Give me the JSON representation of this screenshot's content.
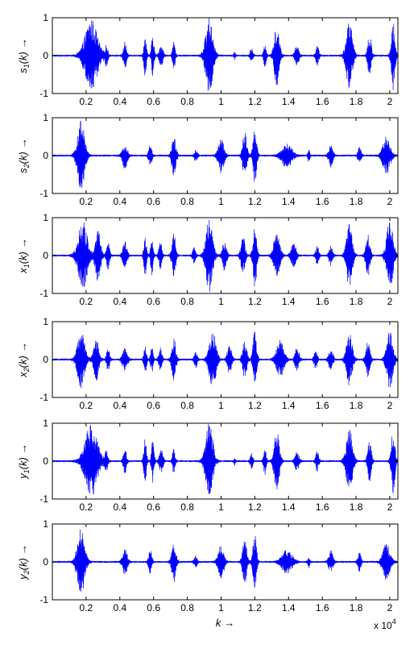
{
  "chart_data": [
    {
      "type": "line",
      "ylabel": "s1(k) →",
      "ylabel_main": "s",
      "ylabel_sub": "1",
      "ylabel_arg": "(k)",
      "ylabel_arrow": "→",
      "xlim": [
        0,
        20480
      ],
      "ylim": [
        -1,
        1
      ],
      "yticks": [
        -1,
        0,
        1
      ],
      "ytick_labels": [
        "-1",
        "0",
        "1"
      ],
      "xticks": [
        2000,
        4000,
        6000,
        8000,
        10000,
        12000,
        14000,
        16000,
        18000,
        20000
      ],
      "xtick_labels": [
        "0.2",
        "0.4",
        "0.6",
        "0.8",
        "1",
        "1.2",
        "1.4",
        "1.6",
        "1.8",
        "2"
      ],
      "grid": false,
      "color": "#0000ff",
      "envelope": [
        {
          "center": 2300,
          "width": 1200,
          "amp": 0.95
        },
        {
          "center": 3200,
          "width": 300,
          "amp": 0.25
        },
        {
          "center": 4300,
          "width": 300,
          "amp": 0.35
        },
        {
          "center": 5500,
          "width": 250,
          "amp": 0.55
        },
        {
          "center": 5950,
          "width": 250,
          "amp": 0.55
        },
        {
          "center": 6450,
          "width": 350,
          "amp": 0.3
        },
        {
          "center": 7200,
          "width": 250,
          "amp": 0.35
        },
        {
          "center": 9300,
          "width": 700,
          "amp": 1.0
        },
        {
          "center": 10800,
          "width": 150,
          "amp": 0.1
        },
        {
          "center": 11800,
          "width": 250,
          "amp": 0.2
        },
        {
          "center": 12600,
          "width": 250,
          "amp": 0.35
        },
        {
          "center": 13300,
          "width": 500,
          "amp": 0.8
        },
        {
          "center": 14500,
          "width": 400,
          "amp": 0.25
        },
        {
          "center": 15700,
          "width": 300,
          "amp": 0.25
        },
        {
          "center": 17600,
          "width": 600,
          "amp": 0.9
        },
        {
          "center": 18800,
          "width": 350,
          "amp": 0.55
        },
        {
          "center": 20200,
          "width": 350,
          "amp": 0.9
        }
      ]
    },
    {
      "type": "line",
      "ylabel": "s2(k) →",
      "ylabel_main": "s",
      "ylabel_sub": "2",
      "ylabel_arg": "(k)",
      "ylabel_arrow": "→",
      "xlim": [
        0,
        20480
      ],
      "ylim": [
        -1,
        1
      ],
      "yticks": [
        -1,
        0,
        1
      ],
      "ytick_labels": [
        "-1",
        "0",
        "1"
      ],
      "xticks": [
        2000,
        4000,
        6000,
        8000,
        10000,
        12000,
        14000,
        16000,
        18000,
        20000
      ],
      "xtick_labels": [
        "0.2",
        "0.4",
        "0.6",
        "0.8",
        "1",
        "1.2",
        "1.4",
        "1.6",
        "1.8",
        "2"
      ],
      "grid": false,
      "color": "#0000ff",
      "envelope": [
        {
          "center": 1700,
          "width": 700,
          "amp": 0.9
        },
        {
          "center": 4300,
          "width": 450,
          "amp": 0.35
        },
        {
          "center": 5800,
          "width": 300,
          "amp": 0.3
        },
        {
          "center": 7200,
          "width": 400,
          "amp": 0.55
        },
        {
          "center": 8500,
          "width": 300,
          "amp": 0.15
        },
        {
          "center": 10000,
          "width": 550,
          "amp": 0.45
        },
        {
          "center": 11400,
          "width": 400,
          "amp": 0.6
        },
        {
          "center": 12000,
          "width": 350,
          "amp": 0.75
        },
        {
          "center": 13900,
          "width": 1000,
          "amp": 0.3
        },
        {
          "center": 15200,
          "width": 200,
          "amp": 0.15
        },
        {
          "center": 16500,
          "width": 400,
          "amp": 0.3
        },
        {
          "center": 18200,
          "width": 300,
          "amp": 0.25
        },
        {
          "center": 19800,
          "width": 700,
          "amp": 0.5
        }
      ]
    },
    {
      "type": "line",
      "ylabel": "x1(k) →",
      "ylabel_main": "x",
      "ylabel_sub": "1",
      "ylabel_arg": "(k)",
      "ylabel_arrow": "→",
      "xlim": [
        0,
        20480
      ],
      "ylim": [
        -1,
        1
      ],
      "yticks": [
        -1,
        0,
        1
      ],
      "ytick_labels": [
        "-1",
        "0",
        "1"
      ],
      "xticks": [
        2000,
        4000,
        6000,
        8000,
        10000,
        12000,
        14000,
        16000,
        18000,
        20000
      ],
      "xtick_labels": [
        "0.2",
        "0.4",
        "0.6",
        "0.8",
        "1",
        "1.2",
        "1.4",
        "1.6",
        "1.8",
        "2"
      ],
      "grid": false,
      "color": "#0000ff",
      "envelope": [
        {
          "center": 1800,
          "width": 900,
          "amp": 0.9
        },
        {
          "center": 2700,
          "width": 500,
          "amp": 0.7
        },
        {
          "center": 3300,
          "width": 300,
          "amp": 0.35
        },
        {
          "center": 4300,
          "width": 400,
          "amp": 0.35
        },
        {
          "center": 5500,
          "width": 250,
          "amp": 0.55
        },
        {
          "center": 5900,
          "width": 250,
          "amp": 0.5
        },
        {
          "center": 6400,
          "width": 300,
          "amp": 0.35
        },
        {
          "center": 7200,
          "width": 350,
          "amp": 0.6
        },
        {
          "center": 8400,
          "width": 300,
          "amp": 0.2
        },
        {
          "center": 9300,
          "width": 650,
          "amp": 0.95
        },
        {
          "center": 10200,
          "width": 400,
          "amp": 0.4
        },
        {
          "center": 11300,
          "width": 400,
          "amp": 0.5
        },
        {
          "center": 12000,
          "width": 350,
          "amp": 0.85
        },
        {
          "center": 13300,
          "width": 600,
          "amp": 0.6
        },
        {
          "center": 14300,
          "width": 500,
          "amp": 0.3
        },
        {
          "center": 15700,
          "width": 300,
          "amp": 0.25
        },
        {
          "center": 16500,
          "width": 350,
          "amp": 0.25
        },
        {
          "center": 17600,
          "width": 550,
          "amp": 0.85
        },
        {
          "center": 18700,
          "width": 400,
          "amp": 0.55
        },
        {
          "center": 20000,
          "width": 600,
          "amp": 0.95
        }
      ]
    },
    {
      "type": "line",
      "ylabel": "x2(k) →",
      "ylabel_main": "x",
      "ylabel_sub": "2",
      "ylabel_arg": "(k)",
      "ylabel_arrow": "→",
      "xlim": [
        0,
        20480
      ],
      "ylim": [
        -1,
        1
      ],
      "yticks": [
        -1,
        0,
        1
      ],
      "ytick_labels": [
        "-1",
        "0",
        "1"
      ],
      "xticks": [
        2000,
        4000,
        6000,
        8000,
        10000,
        12000,
        14000,
        16000,
        18000,
        20000
      ],
      "xtick_labels": [
        "0.2",
        "0.4",
        "0.6",
        "0.8",
        "1",
        "1.2",
        "1.4",
        "1.6",
        "1.8",
        "2"
      ],
      "grid": false,
      "color": "#0000ff",
      "envelope": [
        {
          "center": 1700,
          "width": 700,
          "amp": 0.75
        },
        {
          "center": 2600,
          "width": 500,
          "amp": 0.55
        },
        {
          "center": 3300,
          "width": 300,
          "amp": 0.3
        },
        {
          "center": 4300,
          "width": 450,
          "amp": 0.3
        },
        {
          "center": 5500,
          "width": 250,
          "amp": 0.4
        },
        {
          "center": 5900,
          "width": 250,
          "amp": 0.35
        },
        {
          "center": 6400,
          "width": 300,
          "amp": 0.3
        },
        {
          "center": 7200,
          "width": 400,
          "amp": 0.55
        },
        {
          "center": 8500,
          "width": 300,
          "amp": 0.2
        },
        {
          "center": 9500,
          "width": 650,
          "amp": 0.75
        },
        {
          "center": 10500,
          "width": 400,
          "amp": 0.4
        },
        {
          "center": 11400,
          "width": 400,
          "amp": 0.5
        },
        {
          "center": 12000,
          "width": 350,
          "amp": 0.8
        },
        {
          "center": 13500,
          "width": 700,
          "amp": 0.5
        },
        {
          "center": 14500,
          "width": 400,
          "amp": 0.3
        },
        {
          "center": 15600,
          "width": 300,
          "amp": 0.25
        },
        {
          "center": 16500,
          "width": 400,
          "amp": 0.3
        },
        {
          "center": 17600,
          "width": 550,
          "amp": 0.7
        },
        {
          "center": 18700,
          "width": 400,
          "amp": 0.45
        },
        {
          "center": 20000,
          "width": 600,
          "amp": 0.75
        }
      ]
    },
    {
      "type": "line",
      "ylabel": "y1(k) →",
      "ylabel_main": "y",
      "ylabel_sub": "1",
      "ylabel_arg": "(k)",
      "ylabel_arrow": "→",
      "xlim": [
        0,
        20480
      ],
      "ylim": [
        -1,
        1
      ],
      "yticks": [
        -1,
        0,
        1
      ],
      "ytick_labels": [
        "-1",
        "0",
        "1"
      ],
      "xticks": [
        2000,
        4000,
        6000,
        8000,
        10000,
        12000,
        14000,
        16000,
        18000,
        20000
      ],
      "xtick_labels": [
        "0.2",
        "0.4",
        "0.6",
        "0.8",
        "1",
        "1.2",
        "1.4",
        "1.6",
        "1.8",
        "2"
      ],
      "grid": false,
      "color": "#0000ff",
      "envelope": [
        {
          "center": 2300,
          "width": 1200,
          "amp": 0.95
        },
        {
          "center": 3200,
          "width": 300,
          "amp": 0.25
        },
        {
          "center": 4300,
          "width": 300,
          "amp": 0.35
        },
        {
          "center": 5500,
          "width": 250,
          "amp": 0.6
        },
        {
          "center": 5950,
          "width": 250,
          "amp": 0.55
        },
        {
          "center": 6450,
          "width": 350,
          "amp": 0.3
        },
        {
          "center": 7200,
          "width": 250,
          "amp": 0.35
        },
        {
          "center": 9300,
          "width": 700,
          "amp": 1.0
        },
        {
          "center": 10800,
          "width": 150,
          "amp": 0.1
        },
        {
          "center": 11800,
          "width": 250,
          "amp": 0.2
        },
        {
          "center": 12600,
          "width": 250,
          "amp": 0.35
        },
        {
          "center": 13300,
          "width": 500,
          "amp": 0.8
        },
        {
          "center": 14500,
          "width": 400,
          "amp": 0.25
        },
        {
          "center": 15700,
          "width": 300,
          "amp": 0.25
        },
        {
          "center": 17600,
          "width": 600,
          "amp": 0.9
        },
        {
          "center": 18800,
          "width": 350,
          "amp": 0.55
        },
        {
          "center": 20200,
          "width": 350,
          "amp": 0.9
        }
      ]
    },
    {
      "type": "line",
      "ylabel": "y2(k) →",
      "ylabel_main": "y",
      "ylabel_sub": "2",
      "ylabel_arg": "(k)",
      "ylabel_arrow": "→",
      "xlabel": "k →",
      "xlabel_main": "k",
      "xlabel_arrow": "→",
      "xscale_multiplier": "x 10",
      "xscale_exponent": "4",
      "xlim": [
        0,
        20480
      ],
      "ylim": [
        -1,
        1
      ],
      "yticks": [
        -1,
        0,
        1
      ],
      "ytick_labels": [
        "-1",
        "0",
        "1"
      ],
      "xticks": [
        2000,
        4000,
        6000,
        8000,
        10000,
        12000,
        14000,
        16000,
        18000,
        20000
      ],
      "xtick_labels": [
        "0.2",
        "0.4",
        "0.6",
        "0.8",
        "1",
        "1.2",
        "1.4",
        "1.6",
        "1.8",
        "2"
      ],
      "grid": false,
      "color": "#0000ff",
      "envelope": [
        {
          "center": 1700,
          "width": 700,
          "amp": 0.9
        },
        {
          "center": 4300,
          "width": 450,
          "amp": 0.35
        },
        {
          "center": 5800,
          "width": 300,
          "amp": 0.3
        },
        {
          "center": 7200,
          "width": 400,
          "amp": 0.55
        },
        {
          "center": 8500,
          "width": 300,
          "amp": 0.15
        },
        {
          "center": 10000,
          "width": 550,
          "amp": 0.45
        },
        {
          "center": 11400,
          "width": 400,
          "amp": 0.6
        },
        {
          "center": 12000,
          "width": 350,
          "amp": 0.75
        },
        {
          "center": 13900,
          "width": 1000,
          "amp": 0.3
        },
        {
          "center": 15200,
          "width": 200,
          "amp": 0.15
        },
        {
          "center": 16500,
          "width": 400,
          "amp": 0.3
        },
        {
          "center": 18200,
          "width": 300,
          "amp": 0.25
        },
        {
          "center": 19800,
          "width": 700,
          "amp": 0.5
        }
      ]
    }
  ]
}
